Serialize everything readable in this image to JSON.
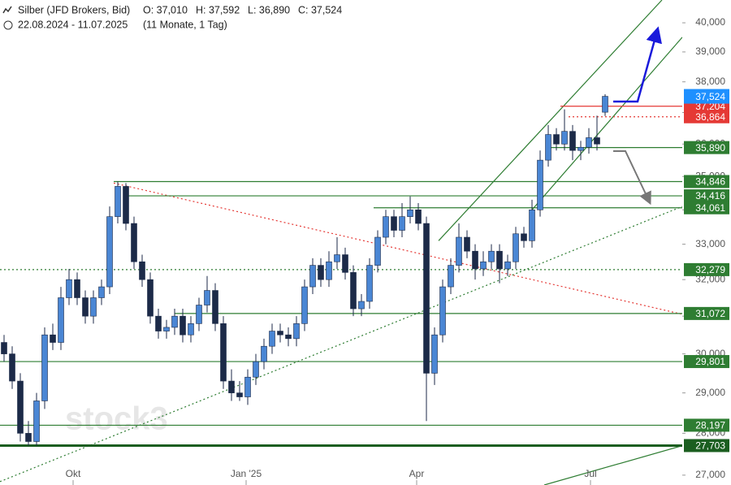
{
  "chart_data": {
    "type": "candlestick",
    "title": "Silber (JFD Brokers, Bid)",
    "o_text": "O: 37,010",
    "h_text": "H: 37,592",
    "l_text": "L: 36,890",
    "c_text": "C: 37,524",
    "period": "22.08.2024 - 11.07.2025",
    "span": "(11 Monate, 1 Tag)",
    "watermark": "stock3",
    "up_color": "#4a86d4",
    "down_color": "#1c2a48",
    "log_scale": true,
    "xlim": [
      -0.5,
      83.5
    ],
    "ylim": [
      26.77,
      40.8
    ],
    "xticks": [
      {
        "value": 8.5,
        "label": "Okt"
      },
      {
        "value": 29.8,
        "label": "Jan '25"
      },
      {
        "value": 50.8,
        "label": "Apr"
      },
      {
        "value": 72.2,
        "label": "Jul"
      }
    ],
    "yticks": [
      {
        "value": 27,
        "label": "27,000"
      },
      {
        "value": 28,
        "label": "28,000"
      },
      {
        "value": 29,
        "label": "29,000"
      },
      {
        "value": 30,
        "label": "30,000"
      },
      {
        "value": 31,
        "label": "31,000"
      },
      {
        "value": 32,
        "label": "32,000"
      },
      {
        "value": 33,
        "label": "33,000"
      },
      {
        "value": 34,
        "label": "34,000"
      },
      {
        "value": 35,
        "label": "35,000"
      },
      {
        "value": 36,
        "label": "36,000"
      },
      {
        "value": 37,
        "label": "37,000"
      },
      {
        "value": 38,
        "label": "38,000"
      },
      {
        "value": 39,
        "label": "39,000"
      },
      {
        "value": 40,
        "label": "40,000"
      }
    ],
    "open": [
      30.3,
      30.0,
      29.3,
      28.0,
      27.8,
      28.8,
      30.5,
      30.3,
      31.5,
      32.0,
      31.5,
      31.0,
      31.5,
      31.8,
      33.8,
      34.7,
      33.6,
      32.5,
      32.0,
      31.0,
      30.6,
      30.7,
      31.0,
      30.5,
      30.8,
      31.3,
      31.7,
      30.8,
      29.3,
      29.0,
      28.9,
      29.4,
      29.8,
      30.2,
      30.6,
      30.5,
      30.4,
      30.8,
      31.8,
      32.4,
      32.0,
      32.5,
      32.7,
      32.2,
      31.2,
      31.4,
      32.4,
      33.2,
      33.8,
      33.4,
      33.8,
      34.0,
      33.6,
      29.5,
      30.5,
      31.8,
      32.4,
      33.2,
      32.8,
      32.3,
      32.5,
      32.8,
      32.3,
      32.5,
      33.3,
      33.1,
      34.0,
      35.5,
      36.3,
      36.0,
      36.4,
      35.8,
      35.9,
      36.2,
      37.01
    ],
    "high": [
      30.5,
      30.2,
      29.5,
      28.3,
      29.0,
      30.7,
      30.8,
      31.8,
      32.3,
      32.2,
      31.7,
      31.7,
      32.0,
      34.1,
      34.85,
      34.8,
      33.8,
      32.7,
      32.2,
      31.2,
      30.9,
      31.2,
      31.2,
      31.0,
      31.5,
      32.1,
      31.9,
      31.0,
      29.6,
      29.3,
      29.6,
      30.0,
      30.4,
      30.8,
      30.8,
      30.7,
      31.0,
      32.0,
      32.6,
      32.6,
      32.8,
      33.2,
      32.9,
      32.4,
      31.6,
      32.6,
      33.4,
      34.0,
      34.0,
      34.2,
      34.4,
      34.2,
      33.8,
      30.7,
      32.0,
      32.6,
      33.6,
      33.4,
      33.0,
      32.8,
      33.0,
      33.0,
      32.7,
      33.5,
      33.5,
      34.3,
      35.8,
      36.6,
      36.5,
      37.1,
      36.6,
      36.1,
      36.5,
      36.9,
      37.592
    ],
    "low": [
      29.8,
      29.1,
      27.8,
      27.7,
      27.7,
      28.6,
      30.1,
      30.1,
      31.3,
      31.3,
      30.8,
      30.8,
      31.3,
      31.6,
      33.6,
      33.4,
      32.3,
      31.8,
      30.8,
      30.4,
      30.4,
      30.5,
      30.3,
      30.3,
      30.6,
      31.1,
      30.6,
      29.1,
      28.8,
      28.8,
      28.7,
      29.2,
      29.6,
      30.0,
      30.3,
      30.2,
      30.2,
      30.6,
      31.6,
      31.8,
      31.8,
      32.3,
      32.0,
      31.0,
      31.0,
      31.2,
      32.2,
      33.0,
      33.2,
      33.2,
      33.6,
      33.4,
      28.3,
      29.2,
      30.3,
      31.6,
      32.2,
      32.6,
      32.0,
      32.1,
      32.3,
      31.9,
      32.1,
      32.3,
      32.9,
      32.9,
      33.8,
      35.3,
      35.8,
      35.8,
      35.5,
      35.5,
      35.7,
      35.8,
      36.89
    ],
    "close": [
      30.0,
      29.3,
      28.0,
      27.8,
      28.8,
      30.5,
      30.3,
      31.5,
      32.0,
      31.5,
      31.0,
      31.5,
      31.8,
      33.8,
      34.7,
      33.6,
      32.5,
      32.0,
      31.0,
      30.6,
      30.7,
      31.0,
      30.5,
      30.8,
      31.3,
      31.7,
      30.8,
      29.3,
      29.0,
      28.9,
      29.4,
      29.8,
      30.2,
      30.6,
      30.5,
      30.4,
      30.8,
      31.8,
      32.4,
      32.0,
      32.5,
      32.7,
      32.2,
      31.2,
      31.4,
      32.4,
      33.2,
      33.8,
      33.4,
      33.8,
      34.0,
      33.6,
      29.5,
      30.5,
      31.8,
      32.4,
      33.2,
      32.8,
      32.3,
      32.5,
      32.8,
      32.3,
      32.5,
      33.3,
      33.1,
      34.0,
      35.5,
      36.3,
      36.0,
      36.4,
      35.8,
      35.9,
      36.2,
      36.0,
      37.524
    ],
    "last_label": "37,524",
    "last_color": "#1e90ff",
    "levels": [
      {
        "value": 37.204,
        "label": "37,204",
        "color": "#e53935",
        "dashed": false,
        "from": 68.5
      },
      {
        "value": 36.864,
        "label": "36,864",
        "color": "#e53935",
        "dashed": true,
        "from": 69.5
      },
      {
        "value": 35.89,
        "label": "35,890",
        "color": "#2e7d32",
        "dashed": false,
        "from": 67
      },
      {
        "value": 34.846,
        "label": "34,846",
        "color": "#2e7d32",
        "dashed": false,
        "from": 13.5
      },
      {
        "value": 34.416,
        "label": "34,416",
        "color": "#2e7d32",
        "dashed": false,
        "from": 15
      },
      {
        "value": 34.061,
        "label": "34,061",
        "color": "#2e7d32",
        "dashed": false,
        "from": 45.5
      },
      {
        "value": 32.279,
        "label": "32,279",
        "color": "#2e7d32",
        "dashed": true,
        "from": -0.5
      },
      {
        "value": 31.072,
        "label": "31,072",
        "color": "#2e7d32",
        "dashed": false,
        "from": 21
      },
      {
        "value": 29.801,
        "label": "29,801",
        "color": "#2e7d32",
        "dashed": false,
        "from": -0.5
      },
      {
        "value": 28.197,
        "label": "28,197",
        "color": "#2e7d32",
        "dashed": false,
        "from": -0.5
      },
      {
        "value": 27.703,
        "label": "27,703",
        "color": "#1b5e20",
        "dashed": false,
        "from": -0.5
      }
    ],
    "trendlines": [
      {
        "x": [
          53.5,
          81
        ],
        "y": [
          33.1,
          40.8
        ],
        "color": "#2e7d32",
        "dashed": false
      },
      {
        "x": [
          65,
          83.5
        ],
        "y": [
          34.0,
          39.5
        ],
        "color": "#2e7d32",
        "dashed": false
      },
      {
        "x": [
          13.5,
          89.5
        ],
        "y": [
          34.8,
          30.75
        ],
        "color": "#e53935",
        "dashed": true
      },
      {
        "x": [
          -0.5,
          83.5
        ],
        "y": [
          26.85,
          34.1
        ],
        "color": "#2e7d32",
        "dashed": true
      },
      {
        "x": [
          66.5,
          83.5
        ],
        "y": [
          26.77,
          27.7
        ],
        "color": "#2e7d32",
        "dashed": false
      }
    ]
  }
}
